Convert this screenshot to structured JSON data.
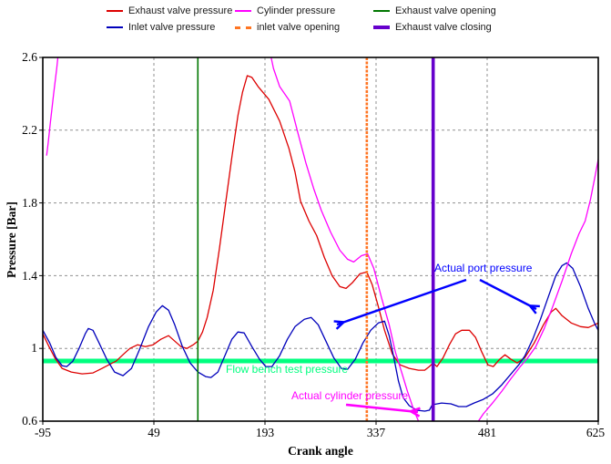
{
  "chart_data": {
    "type": "line",
    "title": "",
    "xlabel": "Crank angle",
    "ylabel": "Pressure [Bar]",
    "xlim": [
      -95,
      625
    ],
    "ylim": [
      0.6,
      2.6
    ],
    "x_ticks": [
      -95,
      49,
      193,
      337,
      481,
      625
    ],
    "y_ticks": [
      0.6,
      1.0,
      1.4,
      1.8,
      2.2,
      2.6
    ],
    "x_tick_labels": [
      "-95",
      "49",
      "193",
      "337",
      "481",
      "625"
    ],
    "y_tick_labels": [
      "2.6",
      "2.2",
      "1.8",
      "1.4",
      "1",
      "0.6"
    ],
    "grid": true,
    "grid_color": "#909090",
    "legend_position": "top",
    "series": [
      {
        "name": "Exhaust valve pressure",
        "color": "#dd0000",
        "width": 1.3,
        "segments": [
          [
            [
              -95,
              1.08
            ],
            [
              -87,
              1.01
            ],
            [
              -79,
              0.945
            ],
            [
              -70,
              0.89
            ],
            [
              -58,
              0.87
            ],
            [
              -44,
              0.86
            ],
            [
              -30,
              0.865
            ],
            [
              -18,
              0.89
            ],
            [
              -5,
              0.92
            ],
            [
              0,
              0.93
            ],
            [
              10,
              0.97
            ],
            [
              18,
              1.0
            ],
            [
              28,
              1.02
            ],
            [
              38,
              1.01
            ],
            [
              48,
              1.02
            ],
            [
              58,
              1.05
            ],
            [
              68,
              1.07
            ],
            [
              76,
              1.04
            ],
            [
              84,
              1.01
            ],
            [
              92,
              1.0
            ],
            [
              100,
              1.02
            ],
            [
              106,
              1.04
            ],
            [
              112,
              1.09
            ],
            [
              118,
              1.17
            ],
            [
              126,
              1.32
            ],
            [
              134,
              1.55
            ],
            [
              142,
              1.8
            ],
            [
              150,
              2.05
            ],
            [
              158,
              2.28
            ],
            [
              164,
              2.41
            ],
            [
              170,
              2.5
            ],
            [
              176,
              2.49
            ],
            [
              184,
              2.44
            ],
            [
              198,
              2.37
            ],
            [
              212,
              2.25
            ],
            [
              224,
              2.1
            ],
            [
              232,
              1.97
            ],
            [
              239,
              1.81
            ],
            [
              250,
              1.7
            ],
            [
              260,
              1.62
            ],
            [
              270,
              1.5
            ],
            [
              280,
              1.4
            ],
            [
              290,
              1.34
            ],
            [
              298,
              1.33
            ],
            [
              306,
              1.36
            ],
            [
              316,
              1.41
            ],
            [
              325,
              1.42
            ],
            [
              332,
              1.35
            ],
            [
              340,
              1.23
            ],
            [
              348,
              1.1
            ],
            [
              358,
              0.97
            ],
            [
              368,
              0.91
            ],
            [
              380,
              0.89
            ],
            [
              392,
              0.88
            ],
            [
              400,
              0.88
            ],
            [
              406,
              0.9
            ],
            [
              411,
              0.92
            ],
            [
              416,
              0.9
            ],
            [
              424,
              0.95
            ],
            [
              432,
              1.02
            ],
            [
              440,
              1.08
            ],
            [
              448,
              1.1
            ],
            [
              458,
              1.1
            ],
            [
              466,
              1.06
            ],
            [
              474,
              0.98
            ],
            [
              482,
              0.91
            ],
            [
              489,
              0.9
            ],
            [
              497,
              0.94
            ],
            [
              504,
              0.965
            ],
            [
              512,
              0.94
            ],
            [
              520,
              0.92
            ],
            [
              530,
              0.95
            ],
            [
              542,
              1.03
            ],
            [
              554,
              1.13
            ],
            [
              564,
              1.2
            ],
            [
              570,
              1.22
            ],
            [
              578,
              1.18
            ],
            [
              590,
              1.14
            ],
            [
              602,
              1.12
            ],
            [
              612,
              1.115
            ],
            [
              620,
              1.13
            ],
            [
              625,
              1.14
            ]
          ]
        ]
      },
      {
        "name": "Inlet valve pressure",
        "color": "#0000bb",
        "width": 1.3,
        "segments": [
          [
            [
              -95,
              1.1
            ],
            [
              -86,
              1.03
            ],
            [
              -78,
              0.95
            ],
            [
              -70,
              0.905
            ],
            [
              -64,
              0.9
            ],
            [
              -56,
              0.93
            ],
            [
              -48,
              1.0
            ],
            [
              -40,
              1.08
            ],
            [
              -36,
              1.11
            ],
            [
              -30,
              1.1
            ],
            [
              -22,
              1.03
            ],
            [
              -12,
              0.94
            ],
            [
              -2,
              0.87
            ],
            [
              9,
              0.85
            ],
            [
              20,
              0.89
            ],
            [
              30,
              0.99
            ],
            [
              42,
              1.12
            ],
            [
              52,
              1.2
            ],
            [
              60,
              1.235
            ],
            [
              68,
              1.21
            ],
            [
              76,
              1.13
            ],
            [
              86,
              1.01
            ],
            [
              96,
              0.92
            ],
            [
              106,
              0.87
            ],
            [
              116,
              0.845
            ],
            [
              123,
              0.84
            ],
            [
              132,
              0.87
            ],
            [
              142,
              0.97
            ],
            [
              150,
              1.05
            ],
            [
              158,
              1.09
            ],
            [
              166,
              1.085
            ],
            [
              176,
              1.01
            ],
            [
              186,
              0.94
            ],
            [
              194,
              0.9
            ],
            [
              202,
              0.9
            ],
            [
              212,
              0.96
            ],
            [
              222,
              1.05
            ],
            [
              232,
              1.12
            ],
            [
              244,
              1.16
            ],
            [
              253,
              1.17
            ],
            [
              262,
              1.13
            ],
            [
              272,
              1.04
            ],
            [
              282,
              0.95
            ],
            [
              292,
              0.89
            ],
            [
              300,
              0.885
            ],
            [
              310,
              0.94
            ],
            [
              320,
              1.03
            ],
            [
              330,
              1.1
            ],
            [
              340,
              1.14
            ],
            [
              348,
              1.15
            ],
            [
              354,
              1.07
            ],
            [
              360,
              0.95
            ],
            [
              366,
              0.82
            ],
            [
              372,
              0.73
            ],
            [
              380,
              0.685
            ],
            [
              390,
              0.66
            ],
            [
              400,
              0.655
            ],
            [
              406,
              0.66
            ],
            [
              410,
              0.69
            ],
            [
              422,
              0.7
            ],
            [
              434,
              0.695
            ],
            [
              444,
              0.68
            ],
            [
              454,
              0.68
            ],
            [
              464,
              0.7
            ],
            [
              476,
              0.72
            ],
            [
              488,
              0.75
            ],
            [
              500,
              0.8
            ],
            [
              512,
              0.86
            ],
            [
              522,
              0.91
            ],
            [
              530,
              0.96
            ],
            [
              540,
              1.05
            ],
            [
              550,
              1.16
            ],
            [
              560,
              1.28
            ],
            [
              570,
              1.4
            ],
            [
              578,
              1.455
            ],
            [
              584,
              1.47
            ],
            [
              592,
              1.44
            ],
            [
              602,
              1.34
            ],
            [
              612,
              1.22
            ],
            [
              620,
              1.14
            ],
            [
              625,
              1.1
            ]
          ]
        ]
      },
      {
        "name": "Cylinder pressure",
        "color": "#ff00ff",
        "width": 1.3,
        "segments": [
          [
            [
              -90,
              2.06
            ],
            [
              -88,
              2.13
            ],
            [
              -85,
              2.25
            ],
            [
              -81,
              2.4
            ],
            [
              -77,
              2.54
            ],
            [
              -74,
              2.66
            ]
          ],
          [
            [
              197,
              2.68
            ],
            [
              204,
              2.54
            ],
            [
              212,
              2.44
            ],
            [
              225,
              2.36
            ],
            [
              236,
              2.18
            ],
            [
              246,
              2.02
            ],
            [
              256,
              1.88
            ],
            [
              266,
              1.76
            ],
            [
              278,
              1.64
            ],
            [
              290,
              1.54
            ],
            [
              300,
              1.49
            ],
            [
              308,
              1.475
            ],
            [
              318,
              1.51
            ],
            [
              326,
              1.52
            ],
            [
              334,
              1.44
            ],
            [
              344,
              1.28
            ],
            [
              354,
              1.13
            ],
            [
              362,
              0.98
            ],
            [
              370,
              0.87
            ],
            [
              378,
              0.76
            ],
            [
              386,
              0.66
            ],
            [
              392,
              0.6
            ],
            [
              402,
              0.53
            ],
            [
              414,
              0.48
            ],
            [
              426,
              0.46
            ],
            [
              438,
              0.465
            ],
            [
              450,
              0.5
            ],
            [
              460,
              0.55
            ],
            [
              468,
              0.59
            ],
            [
              476,
              0.64
            ],
            [
              488,
              0.7
            ],
            [
              500,
              0.765
            ],
            [
              512,
              0.835
            ],
            [
              524,
              0.9
            ],
            [
              533,
              0.945
            ],
            [
              544,
              1.01
            ],
            [
              555,
              1.11
            ],
            [
              566,
              1.23
            ],
            [
              578,
              1.37
            ],
            [
              590,
              1.52
            ],
            [
              600,
              1.63
            ],
            [
              608,
              1.7
            ],
            [
              615,
              1.82
            ],
            [
              621,
              1.95
            ],
            [
              625,
              2.04
            ]
          ]
        ]
      }
    ],
    "event_lines": [
      {
        "name": "Exhaust valve opening",
        "x": 106,
        "color": "#007700",
        "width": 1.6,
        "dash": ""
      },
      {
        "name": "inlet valve opening",
        "x": 325,
        "color": "#ff7522",
        "width": 2.6,
        "dash": "3 1.5"
      },
      {
        "name": "Exhaust valve closing",
        "x": 411,
        "color": "#6600cc",
        "width": 3.6,
        "dash": ""
      }
    ],
    "reference_line": {
      "label": "Flow bench test pressure",
      "y": 0.931,
      "color": "#00ff7f",
      "width": 5
    },
    "annotations": {
      "flow_label": {
        "text": "Flow bench test pressure",
        "color": "#00ff7f"
      },
      "port_label": {
        "text": "Actual port pressure",
        "color": "#0000ff"
      },
      "cyl_label": {
        "text": "Actual cylinder pressure",
        "color": "#ff00ff"
      },
      "arrows": [
        {
          "name": "port-pressure-arrow-left",
          "color": "#0000ff",
          "from": [
            512,
            307
          ],
          "to": [
            370,
            356
          ],
          "width": 2.4
        },
        {
          "name": "port-pressure-arrow-right",
          "color": "#0000ff",
          "from": [
            527,
            307
          ],
          "to": [
            589,
            339
          ],
          "width": 2.4
        },
        {
          "name": "cylinder-pressure-arrow",
          "color": "#ff00ff",
          "from": [
            380,
            444
          ],
          "to": [
            459,
            452
          ],
          "width": 2.6
        }
      ]
    }
  },
  "legend": {
    "items": [
      {
        "label": "Exhaust valve pressure",
        "color": "#dd0000",
        "thickness": 2,
        "dash": "solid"
      },
      {
        "label": "Cylinder pressure",
        "color": "#ff00ff",
        "thickness": 2,
        "dash": "solid"
      },
      {
        "label": "Exhaust valve opening",
        "color": "#007700",
        "thickness": 2,
        "dash": "solid"
      },
      {
        "label": "Inlet valve pressure",
        "color": "#0000bb",
        "thickness": 2,
        "dash": "solid"
      },
      {
        "label": "inlet valve opening",
        "color": "#ff7522",
        "thickness": 3,
        "dash": "dashed"
      },
      {
        "label": "Exhaust valve closing",
        "color": "#6600cc",
        "thickness": 4,
        "dash": "solid"
      }
    ]
  }
}
